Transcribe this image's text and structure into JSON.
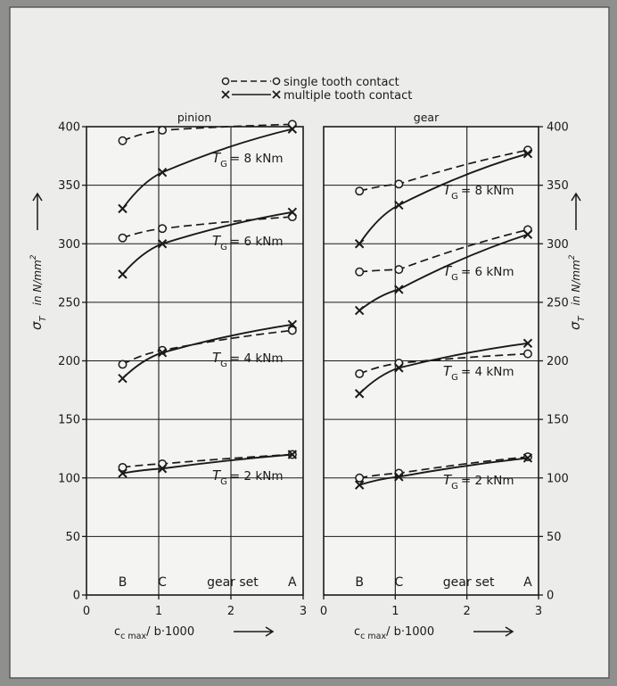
{
  "legend": {
    "single_label": "single  tooth  contact",
    "multiple_label": "multiple tooth contact"
  },
  "y_axis_label": {
    "main": "σ",
    "sub": "T",
    "unit": "in  N/mm",
    "power": "2"
  },
  "x_axis_label": {
    "main": "c",
    "sub": "c max",
    "rest": "/ b·1000"
  },
  "gear_set_label": "gear set",
  "chart_data": [
    {
      "type": "line",
      "title": "pinion",
      "xlim": [
        0,
        3
      ],
      "ylim": [
        0,
        400
      ],
      "xticks": [
        "0",
        "1",
        "2",
        "3"
      ],
      "yticks": [
        "0",
        "50",
        "100",
        "150",
        "200",
        "250",
        "300",
        "350",
        "400"
      ],
      "grid": true,
      "gear_set_markers": [
        {
          "label": "B",
          "x": 0.5
        },
        {
          "label": "C",
          "x": 1.05
        },
        {
          "label": "A",
          "x": 2.85
        }
      ],
      "series": [
        {
          "name": "single tooth contact",
          "torque": "8 kNm",
          "x": [
            0.5,
            1.05,
            2.85
          ],
          "y": [
            388,
            397,
            402
          ]
        },
        {
          "name": "multiple tooth contact",
          "torque": "8 kNm",
          "x": [
            0.5,
            1.05,
            2.85
          ],
          "y": [
            330,
            361,
            398
          ]
        },
        {
          "name": "single tooth contact",
          "torque": "6 kNm",
          "x": [
            0.5,
            1.05,
            2.85
          ],
          "y": [
            305,
            313,
            323
          ]
        },
        {
          "name": "multiple tooth contact",
          "torque": "6 kNm",
          "x": [
            0.5,
            1.05,
            2.85
          ],
          "y": [
            274,
            300,
            327
          ]
        },
        {
          "name": "single tooth contact",
          "torque": "4 kNm",
          "x": [
            0.5,
            1.05,
            2.85
          ],
          "y": [
            197,
            209,
            226
          ]
        },
        {
          "name": "multiple tooth contact",
          "torque": "4 kNm",
          "x": [
            0.5,
            1.05,
            2.85
          ],
          "y": [
            185,
            207,
            231
          ]
        },
        {
          "name": "single tooth contact",
          "torque": "2 kNm",
          "x": [
            0.5,
            1.05,
            2.85
          ],
          "y": [
            109,
            112,
            120
          ]
        },
        {
          "name": "multiple tooth contact",
          "torque": "2 kNm",
          "x": [
            0.5,
            1.05,
            2.85
          ],
          "y": [
            104,
            108,
            120
          ]
        }
      ],
      "annotations": [
        {
          "text": "= 8  kNm",
          "torque": "8 kNm"
        },
        {
          "text": "= 6  kNm",
          "torque": "6 kNm"
        },
        {
          "text": "= 4  kNm",
          "torque": "4 kNm"
        },
        {
          "text": "= 2  kNm",
          "torque": "2 kNm"
        }
      ]
    },
    {
      "type": "line",
      "title": "gear",
      "xlim": [
        0,
        3
      ],
      "ylim": [
        0,
        400
      ],
      "xticks": [
        "0",
        "1",
        "2",
        "3"
      ],
      "yticks": [
        "0",
        "50",
        "100",
        "150",
        "200",
        "250",
        "300",
        "350",
        "400"
      ],
      "grid": true,
      "gear_set_markers": [
        {
          "label": "B",
          "x": 0.5
        },
        {
          "label": "C",
          "x": 1.05
        },
        {
          "label": "A",
          "x": 2.85
        }
      ],
      "series": [
        {
          "name": "single tooth contact",
          "torque": "8 kNm",
          "x": [
            0.5,
            1.05,
            2.85
          ],
          "y": [
            345,
            351,
            380
          ]
        },
        {
          "name": "multiple tooth contact",
          "torque": "8 kNm",
          "x": [
            0.5,
            1.05,
            2.85
          ],
          "y": [
            300,
            333,
            377
          ]
        },
        {
          "name": "single tooth contact",
          "torque": "6 kNm",
          "x": [
            0.5,
            1.05,
            2.85
          ],
          "y": [
            276,
            278,
            312
          ]
        },
        {
          "name": "multiple tooth contact",
          "torque": "6 kNm",
          "x": [
            0.5,
            1.05,
            2.85
          ],
          "y": [
            243,
            261,
            308
          ]
        },
        {
          "name": "single tooth contact",
          "torque": "4 kNm",
          "x": [
            0.5,
            1.05,
            2.85
          ],
          "y": [
            189,
            198,
            206
          ]
        },
        {
          "name": "multiple tooth contact",
          "torque": "4 kNm",
          "x": [
            0.5,
            1.05,
            2.85
          ],
          "y": [
            172,
            194,
            215
          ]
        },
        {
          "name": "single tooth contact",
          "torque": "2 kNm",
          "x": [
            0.5,
            1.05,
            2.85
          ],
          "y": [
            100,
            104,
            118
          ]
        },
        {
          "name": "multiple tooth contact",
          "torque": "2 kNm",
          "x": [
            0.5,
            1.05,
            2.85
          ],
          "y": [
            94,
            101,
            117
          ]
        }
      ],
      "annotations": [
        {
          "text": "= 8  kNm",
          "torque": "8 kNm"
        },
        {
          "text": "= 6  kNm",
          "torque": "6 kNm"
        },
        {
          "text": "= 4  kNm",
          "torque": "4 kNm"
        },
        {
          "text": "= 2  kNm",
          "torque": "2 kNm"
        }
      ]
    }
  ]
}
